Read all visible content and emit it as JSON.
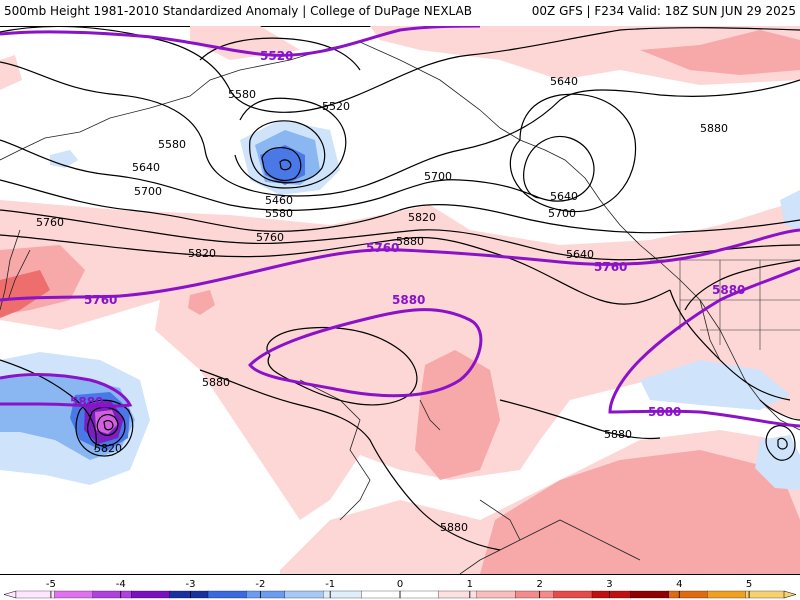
{
  "header": {
    "title_left": "500mb Height 1981-2010 Standardized Anomaly | College of DuPage NEXLAB",
    "title_right": "00Z GFS | F234 Valid: 18Z SUN JUN 29 2025"
  },
  "colors": {
    "contour_black": "#000000",
    "contour_purple": "#8a12c8",
    "pos1": "#fdd6d6",
    "pos2": "#f7a8a8",
    "pos3": "#ee6e6e",
    "neg1": "#cfe3fb",
    "neg2": "#8ab6f2",
    "neg3": "#4a78e6",
    "neg4": "#2244c8",
    "neg5": "#7a20c0",
    "neg6": "#d060e0"
  },
  "contour_labels": {
    "black": [
      "5520",
      "5580",
      "5640",
      "5700",
      "5760",
      "5820",
      "5880",
      "5460",
      "5580",
      "5640",
      "5580",
      "5640",
      "5700",
      "5760",
      "5820",
      "5880",
      "5880",
      "5880",
      "5880",
      "5820",
      "5580",
      "5640",
      "5700"
    ],
    "purple": [
      "5520",
      "5760",
      "5760",
      "5760",
      "5880",
      "5880",
      "5880",
      "5880"
    ]
  },
  "colorbar": {
    "ticks": [
      "-5",
      "-4",
      "-3",
      "-2",
      "-1",
      "0",
      "1",
      "2",
      "3",
      "4",
      "5"
    ],
    "segments": [
      "#ffe6ff",
      "#e070f0",
      "#b040e0",
      "#7a10c0",
      "#1a30a0",
      "#3a6ae0",
      "#6a9cf0",
      "#a8c8f8",
      "#e0eefc",
      "#ffffff",
      "#ffffff",
      "#fde0e0",
      "#fbbcbc",
      "#f48a8a",
      "#e84a4a",
      "#c01010",
      "#900000",
      "#e06a10",
      "#f0a020",
      "#f8d070"
    ]
  }
}
